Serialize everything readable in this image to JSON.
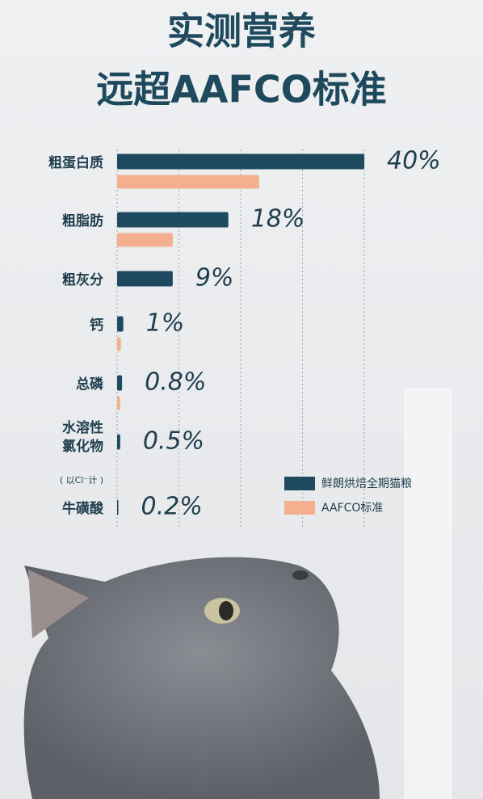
{
  "chart_data": {
    "type": "hbar",
    "title_lines": [
      "实测营养",
      "远超AAFCO标准"
    ],
    "categories": [
      "粗蛋白质",
      "粗脂肪",
      "粗灰分",
      "钙",
      "总磷",
      [
        "水溶性",
        "氯化物"
      ],
      "牛磺酸"
    ],
    "category_notes": [
      null,
      null,
      null,
      null,
      null,
      "( 以Cl⁻计 )",
      null
    ],
    "series": [
      {
        "name": "鲜朗烘焙全期猫粮",
        "color": "#1d4a5f",
        "values": [
          40,
          18,
          9,
          1,
          0.8,
          0.5,
          0.2
        ],
        "value_labels": [
          "40%",
          "18%",
          "9%",
          "1%",
          "0.8%",
          "0.5%",
          "0.2%"
        ]
      },
      {
        "name": "AAFCO标准",
        "color": "#f4b08e",
        "values": [
          23,
          9,
          null,
          0.6,
          0.5,
          null,
          null
        ]
      }
    ],
    "xlim": [
      0,
      40
    ],
    "xticks": [
      0,
      10,
      20,
      30,
      40
    ],
    "grid": true
  }
}
